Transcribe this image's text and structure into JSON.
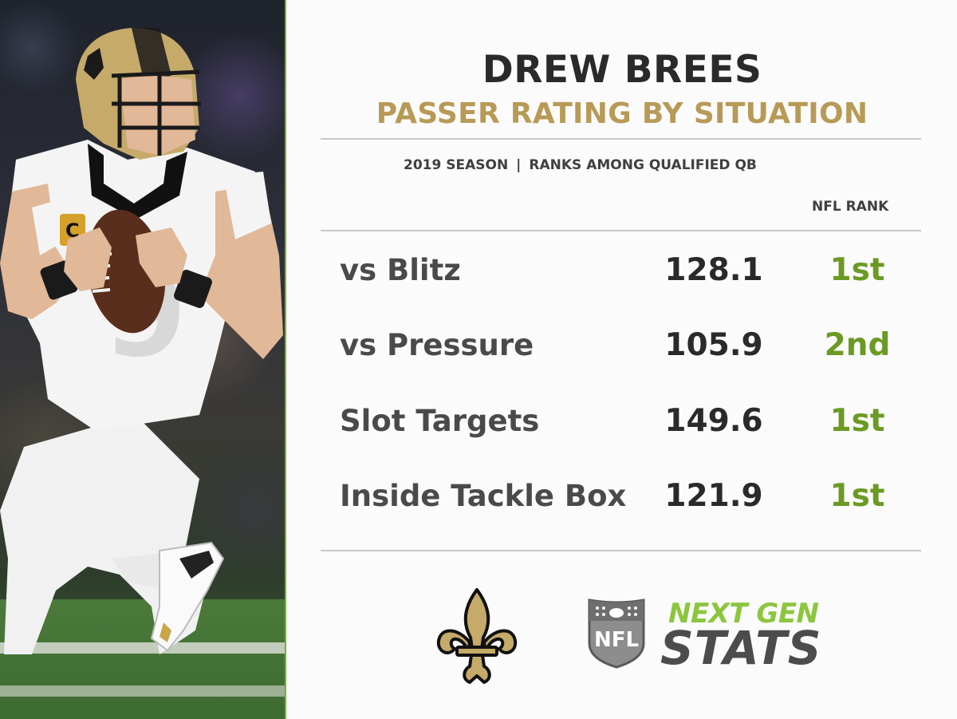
{
  "header": {
    "player_name": "DREW BREES",
    "subtitle": "PASSER RATING BY SITUATION"
  },
  "meta": {
    "season": "2019 SEASON",
    "separator": "|",
    "context": "RANKS AMONG QUALIFIED QB"
  },
  "table": {
    "rank_header": "NFL RANK",
    "rows": [
      {
        "label": "vs Blitz",
        "value": "128.1",
        "rank": "1st"
      },
      {
        "label": "vs Pressure",
        "value": "105.9",
        "rank": "2nd"
      },
      {
        "label": "Slot Targets",
        "value": "149.6",
        "rank": "1st"
      },
      {
        "label": "Inside Tackle Box",
        "value": "121.9",
        "rank": "1st"
      }
    ]
  },
  "branding": {
    "ngs_line1": "NEXT GEN",
    "ngs_line2": "STATS",
    "nfl_shield_text": "NFL",
    "team_logo": "fleur-de-lis-icon"
  },
  "colors": {
    "title": "#2a2a2a",
    "subtitle_gold": "#b89a57",
    "rank_green": "#6a9a23",
    "divider_green": "#7ab32a"
  },
  "photo": {
    "jersey_number": "9",
    "captain_patch": "C"
  }
}
